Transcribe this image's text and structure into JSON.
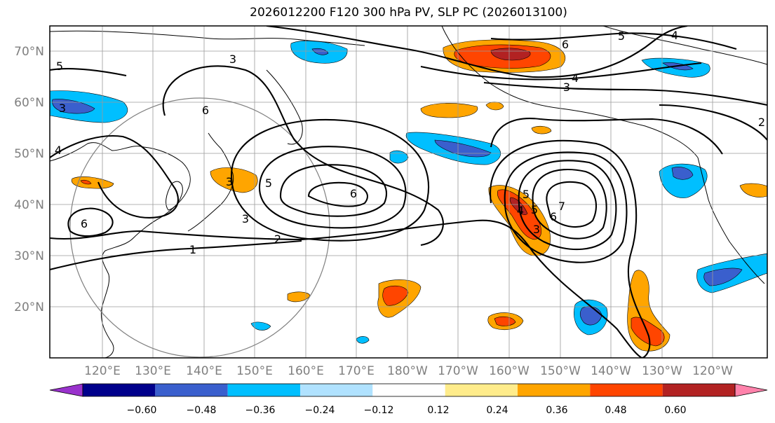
{
  "title": "2026012200 F120 300 hPa PV, SLP PC (2026013100)",
  "map": {
    "lat_labels": [
      "70°N",
      "60°N",
      "50°N",
      "40°N",
      "30°N",
      "20°N"
    ],
    "lon_labels": [
      "120°E",
      "130°E",
      "140°E",
      "150°E",
      "160°E",
      "170°E",
      "180°W",
      "170°W",
      "160°W",
      "150°W",
      "140°W",
      "130°W",
      "120°W"
    ],
    "contour_labels": [
      "5",
      "3",
      "6",
      "5",
      "4",
      "3",
      "4",
      "2",
      "3",
      "5",
      "6",
      "2",
      "1",
      "3",
      "4",
      "5",
      "3",
      "4",
      "5",
      "6",
      "3",
      "6",
      "7",
      "6"
    ]
  },
  "colorbar": {
    "ticks": [
      "−0.60",
      "−0.48",
      "−0.36",
      "−0.24",
      "−0.12",
      "0.12",
      "0.24",
      "0.36",
      "0.48",
      "0.60"
    ],
    "colors": [
      "#9932cc",
      "#00008b",
      "#3a5fcd",
      "#00bfff",
      "#b0e2ff",
      "#ffffff",
      "#ffec8b",
      "#ffa500",
      "#ff4500",
      "#b22222",
      "#ff82ab"
    ]
  },
  "colors": {
    "orange": "#ffa500",
    "red": "#ff4500",
    "darkred": "#b22222",
    "blue": "#00bfff",
    "midblue": "#3a5fcd",
    "lightblue": "#b0e2ff"
  }
}
